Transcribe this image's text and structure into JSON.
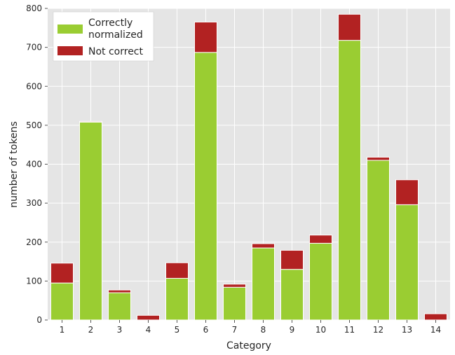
{
  "chart_data": {
    "type": "bar",
    "stacked": true,
    "categories": [
      "1",
      "2",
      "3",
      "4",
      "5",
      "6",
      "7",
      "8",
      "9",
      "10",
      "11",
      "12",
      "13",
      "14"
    ],
    "series": [
      {
        "name": "Correctly\nnormalized",
        "color": "#9acd32",
        "values": [
          95,
          508,
          70,
          0,
          107,
          687,
          84,
          185,
          130,
          197,
          718,
          410,
          296,
          0
        ]
      },
      {
        "name": "Not correct",
        "color": "#b22222",
        "values": [
          51,
          2,
          7,
          12,
          40,
          78,
          8,
          11,
          49,
          21,
          67,
          8,
          64,
          16
        ]
      }
    ],
    "title": "",
    "xlabel": "Category",
    "ylabel": "number of tokens",
    "ylim": [
      0,
      800
    ],
    "yticks": [
      0,
      100,
      200,
      300,
      400,
      500,
      600,
      700,
      800
    ],
    "grid": true,
    "legend": "top-left",
    "background": "#e5e5e5",
    "grid_color": "#ffffff"
  }
}
